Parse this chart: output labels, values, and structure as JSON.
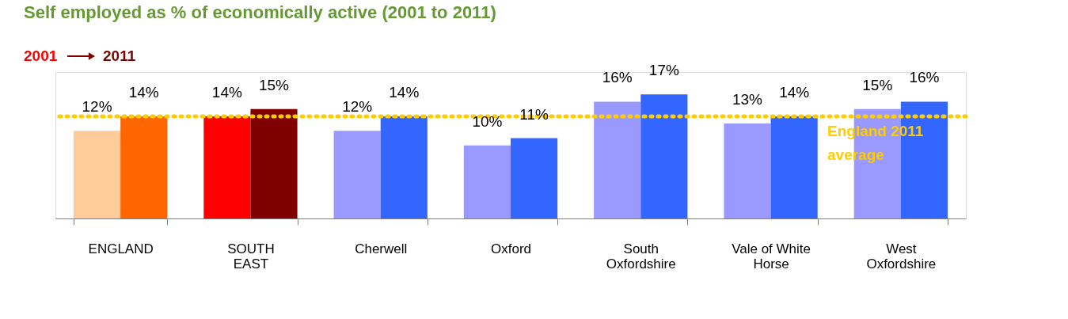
{
  "chart_data": {
    "type": "bar",
    "title": "Self employed as % of economically active (2001 to 2011)",
    "categories": [
      "ENGLAND",
      "SOUTH EAST",
      "Cherwell",
      "Oxford",
      "South Oxfordshire",
      "Vale of White Horse",
      "West Oxfordshire"
    ],
    "series": [
      {
        "name": "2001",
        "colors": [
          "#ffcc99",
          "#ff0000",
          "#9999ff",
          "#9999ff",
          "#9999ff",
          "#9999ff",
          "#9999ff"
        ],
        "values": [
          12,
          14,
          12,
          10,
          16,
          13,
          15
        ],
        "value_labels": [
          "12%",
          "14%",
          "12%",
          "10%",
          "16%",
          "13%",
          "15%"
        ]
      },
      {
        "name": "2011",
        "colors": [
          "#ff6600",
          "#800000",
          "#3366ff",
          "#3366ff",
          "#3366ff",
          "#3366ff",
          "#3366ff"
        ],
        "values": [
          14,
          15,
          14,
          11,
          17,
          14,
          16
        ],
        "value_labels": [
          "14%",
          "15%",
          "14%",
          "11%",
          "17%",
          "14%",
          "16%"
        ]
      }
    ],
    "ref_lines": [
      {
        "axis": "y",
        "value": 14,
        "label": "England 2011 average",
        "color": "#ffcc00",
        "line_style": "dotted"
      }
    ],
    "legend": "top left"
  }
}
